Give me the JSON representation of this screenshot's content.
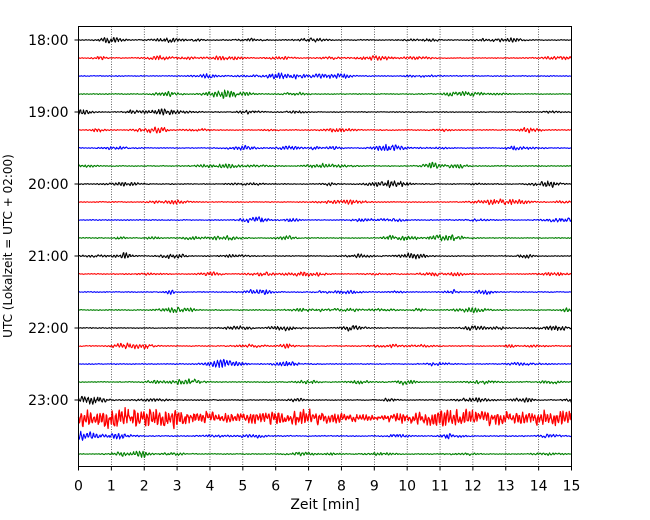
{
  "chart_data": {
    "type": "line",
    "subtype": "helicorder",
    "title": "",
    "xlabel": "Zeit  [min]",
    "ylabel": "UTC (Lokalzeit = UTC + 02:00)",
    "xlim": [
      0,
      15
    ],
    "x_ticks": [
      "0",
      "1",
      "2",
      "3",
      "4",
      "5",
      "6",
      "7",
      "8",
      "9",
      "10",
      "11",
      "12",
      "13",
      "14",
      "15"
    ],
    "y_tick_labels": [
      "18:00",
      "19:00",
      "20:00",
      "21:00",
      "22:00",
      "23:00"
    ],
    "y_tick_rows": [
      0,
      4,
      8,
      12,
      16,
      20
    ],
    "grid_x": true,
    "grid_style": "dotted",
    "trace_colors": [
      "#000000",
      "#ff0000",
      "#0000ff",
      "#008000"
    ],
    "trace_count": 24,
    "trace_amplitudes": [
      0.35,
      0.35,
      0.35,
      0.35,
      0.35,
      0.35,
      0.35,
      0.35,
      0.35,
      0.35,
      0.35,
      0.35,
      0.35,
      0.35,
      0.35,
      0.35,
      0.35,
      0.35,
      0.35,
      0.35,
      0.35,
      1.0,
      0.4,
      0.35
    ],
    "series": [
      {
        "time": "18:00"
      },
      {
        "time": "18:15"
      },
      {
        "time": "18:30"
      },
      {
        "time": "18:45"
      },
      {
        "time": "19:00"
      },
      {
        "time": "19:15"
      },
      {
        "time": "19:30"
      },
      {
        "time": "19:45"
      },
      {
        "time": "20:00"
      },
      {
        "time": "20:15"
      },
      {
        "time": "20:30"
      },
      {
        "time": "20:45"
      },
      {
        "time": "21:00"
      },
      {
        "time": "21:15"
      },
      {
        "time": "21:30"
      },
      {
        "time": "21:45"
      },
      {
        "time": "22:00"
      },
      {
        "time": "22:15"
      },
      {
        "time": "22:30"
      },
      {
        "time": "22:45"
      },
      {
        "time": "23:00"
      },
      {
        "time": "23:15"
      },
      {
        "time": "23:30"
      },
      {
        "time": "23:45"
      }
    ]
  }
}
